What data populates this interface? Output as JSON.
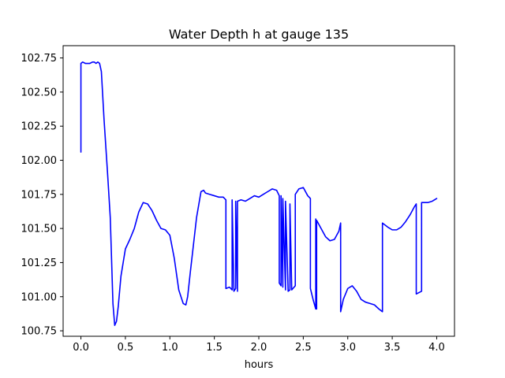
{
  "chart_data": {
    "type": "line",
    "title": "Water Depth h at gauge 135",
    "xlabel": "hours",
    "ylabel": "",
    "xlim": [
      -0.2,
      4.2
    ],
    "ylim": [
      100.71,
      102.84
    ],
    "xticks": [
      0.0,
      0.5,
      1.0,
      1.5,
      2.0,
      2.5,
      3.0,
      3.5,
      4.0
    ],
    "xtick_labels": [
      "0.0",
      "0.5",
      "1.0",
      "1.5",
      "2.0",
      "2.5",
      "3.0",
      "3.5",
      "4.0"
    ],
    "yticks": [
      100.75,
      101.0,
      101.25,
      101.5,
      101.75,
      102.0,
      102.25,
      102.5,
      102.75
    ],
    "ytick_labels": [
      "100.75",
      "101.00",
      "101.25",
      "101.50",
      "101.75",
      "102.00",
      "102.25",
      "102.50",
      "102.75"
    ],
    "grid": false,
    "series": [
      {
        "color": "#0000ff",
        "x": [
          0.0,
          0.0,
          0.02,
          0.05,
          0.1,
          0.13,
          0.15,
          0.17,
          0.19,
          0.21,
          0.23,
          0.26,
          0.3,
          0.33,
          0.36,
          0.38,
          0.4,
          0.42,
          0.45,
          0.5,
          0.55,
          0.6,
          0.65,
          0.7,
          0.75,
          0.8,
          0.85,
          0.9,
          0.95,
          1.0,
          1.05,
          1.1,
          1.15,
          1.18,
          1.2,
          1.23,
          1.3,
          1.35,
          1.38,
          1.4,
          1.45,
          1.5,
          1.55,
          1.6,
          1.63,
          1.63,
          1.67,
          1.7,
          1.7,
          1.72,
          1.74,
          1.74,
          1.76,
          1.76,
          1.8,
          1.85,
          1.9,
          1.95,
          2.0,
          2.05,
          2.1,
          2.15,
          2.2,
          2.23,
          2.23,
          2.25,
          2.25,
          2.27,
          2.27,
          2.3,
          2.3,
          2.33,
          2.35,
          2.35,
          2.37,
          2.41,
          2.41,
          2.45,
          2.5,
          2.55,
          2.58,
          2.58,
          2.61,
          2.64,
          2.64,
          2.65,
          2.65,
          2.7,
          2.75,
          2.8,
          2.85,
          2.9,
          2.92,
          2.92,
          2.95,
          3.0,
          3.05,
          3.1,
          3.15,
          3.2,
          3.25,
          3.3,
          3.35,
          3.39,
          3.39,
          3.45,
          3.5,
          3.55,
          3.6,
          3.65,
          3.7,
          3.75,
          3.77,
          3.77,
          3.8,
          3.83,
          3.83,
          3.9,
          3.95,
          4.0
        ],
        "y": [
          102.06,
          102.71,
          102.72,
          102.71,
          102.71,
          102.72,
          102.72,
          102.71,
          102.72,
          102.71,
          102.65,
          102.3,
          101.9,
          101.58,
          100.95,
          100.79,
          100.82,
          100.93,
          101.15,
          101.35,
          101.42,
          101.5,
          101.62,
          101.69,
          101.68,
          101.63,
          101.56,
          101.5,
          101.49,
          101.45,
          101.28,
          101.05,
          100.95,
          100.94,
          101.0,
          101.18,
          101.58,
          101.77,
          101.78,
          101.76,
          101.75,
          101.74,
          101.73,
          101.73,
          101.71,
          101.06,
          101.07,
          101.05,
          101.71,
          101.04,
          101.06,
          101.7,
          101.04,
          101.7,
          101.71,
          101.7,
          101.72,
          101.74,
          101.73,
          101.75,
          101.77,
          101.79,
          101.78,
          101.74,
          101.1,
          101.08,
          101.74,
          101.07,
          101.72,
          101.05,
          101.7,
          101.04,
          101.05,
          101.68,
          101.05,
          101.08,
          101.75,
          101.79,
          101.8,
          101.74,
          101.72,
          101.06,
          100.98,
          100.91,
          101.57,
          100.91,
          101.56,
          101.5,
          101.44,
          101.41,
          101.42,
          101.48,
          101.54,
          100.89,
          100.98,
          101.06,
          101.08,
          101.04,
          100.98,
          100.96,
          100.95,
          100.94,
          100.91,
          100.89,
          101.54,
          101.51,
          101.49,
          101.49,
          101.51,
          101.55,
          101.6,
          101.66,
          101.68,
          101.02,
          101.03,
          101.04,
          101.69,
          101.69,
          101.7,
          101.72
        ]
      }
    ]
  }
}
